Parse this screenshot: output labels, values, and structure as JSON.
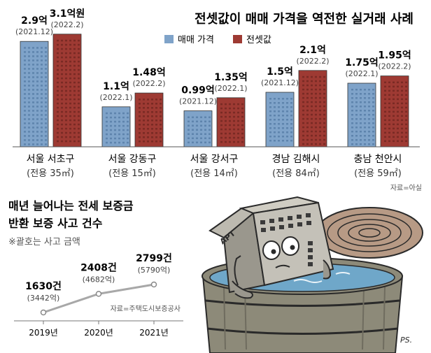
{
  "chart_data": [
    {
      "type": "bar",
      "title": "전셋값이 매매 가격을 역전한 실거래 사례",
      "legend": [
        "매매 가격",
        "전셋값"
      ],
      "legend_placement": "top-right",
      "source": "자료=아실",
      "categories": [
        {
          "region": "서울 서초구",
          "area": "(전용 35㎡)"
        },
        {
          "region": "서울 강동구",
          "area": "(전용 15㎡)"
        },
        {
          "region": "서울 강서구",
          "area": "(전용 14㎡)"
        },
        {
          "region": "경남 김해시",
          "area": "(전용 84㎡)"
        },
        {
          "region": "충남 천안시",
          "area": "(전용 59㎡)"
        }
      ],
      "series": [
        {
          "name": "매매 가격",
          "color": "#7fa3c9",
          "values": [
            2.9,
            1.1,
            0.99,
            1.5,
            1.75
          ],
          "labels": [
            "2.9억",
            "1.1억",
            "0.99억",
            "1.5억",
            "1.75억"
          ],
          "dates": [
            "(2021.12)",
            "(2022.1)",
            "(2021.12)",
            "(2021.12)",
            "(2022.1)"
          ]
        },
        {
          "name": "전셋값",
          "color": "#9e3a33",
          "values": [
            3.1,
            1.48,
            1.35,
            2.1,
            1.95
          ],
          "labels": [
            "3.1억원",
            "1.48억",
            "1.35억",
            "2.1억",
            "1.95억"
          ],
          "dates": [
            "(2022.2)",
            "(2022.2)",
            "(2022.1)",
            "(2022.2)",
            "(2022.2)"
          ]
        }
      ]
    },
    {
      "type": "line",
      "title": "매년 늘어나는 전세 보증금 반환 보증 사고 건수",
      "title_lines": [
        "매년 늘어나는 전세 보증금",
        "반환 보증 사고 건수"
      ],
      "note": "※괄호는 사고 금액",
      "source": "자료=주택도시보증공사",
      "x": [
        "2019년",
        "2020년",
        "2021년"
      ],
      "values": [
        1630,
        2408,
        2799
      ],
      "labels": [
        "1630건",
        "2408건",
        "2799건"
      ],
      "amounts": [
        "(3442억)",
        "(4682억)",
        "(5790억)"
      ]
    }
  ],
  "cartoon": {
    "apt_label": "APT",
    "signature": "PS."
  }
}
